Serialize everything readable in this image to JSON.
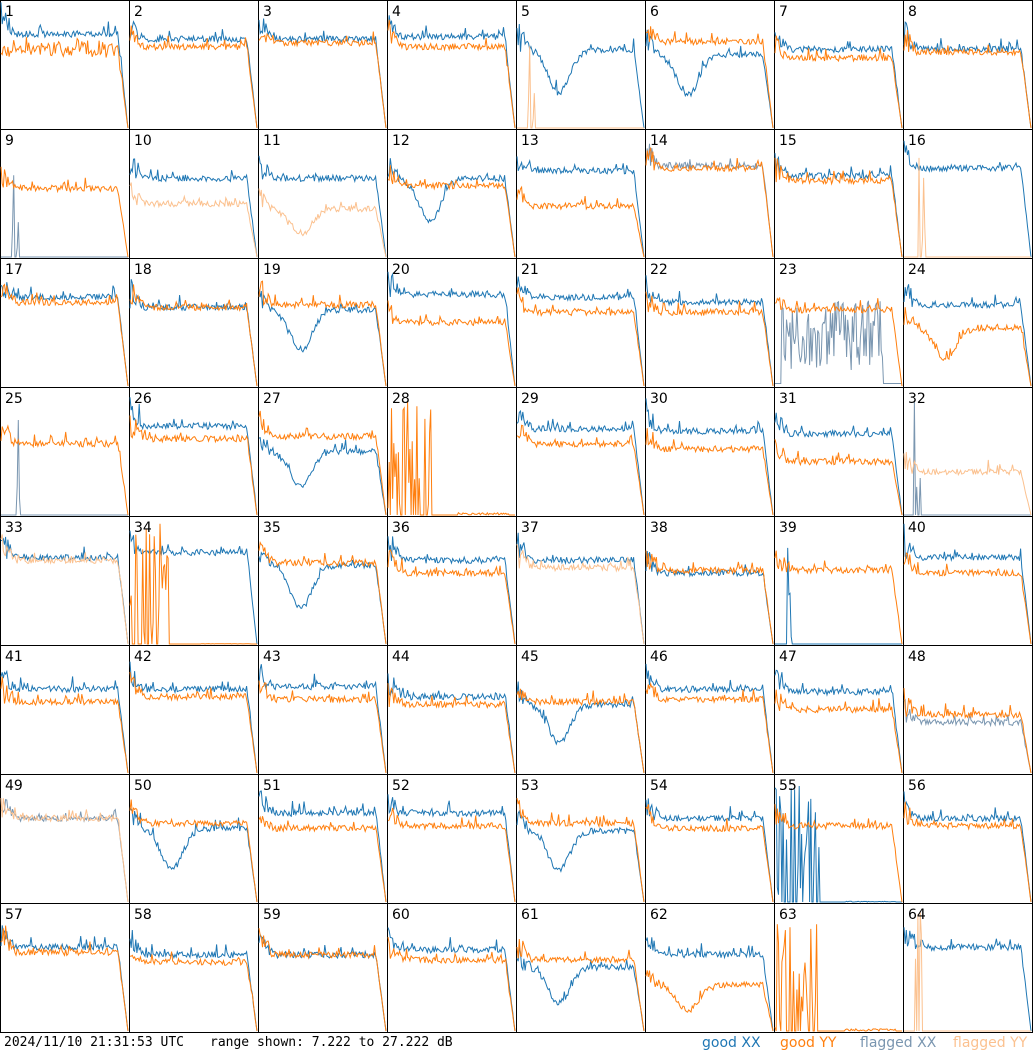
{
  "footer": {
    "timestamp": "2024/11/10 21:31:53 UTC",
    "range_text": "range shown: 7.222 to 27.222 dB",
    "legend": {
      "good_xx": "good XX",
      "good_yy": "good YY",
      "flagged_xx": "flagged XX",
      "flagged_yy": "flagged YY"
    }
  },
  "colors": {
    "good_xx": "#1f77b4",
    "good_yy": "#ff7f0e",
    "flagged_xx": "#7a96b0",
    "flagged_yy": "#fbc18f"
  },
  "chart_data": {
    "type": "line",
    "layout": "8x8 grid of small spectra, one per tile",
    "y_range_db": [
      7.222,
      27.222
    ],
    "series_kinds": [
      "good XX",
      "good YY",
      "flagged XX",
      "flagged YY"
    ],
    "tiles": [
      {
        "id": "1",
        "xx": "good",
        "yy": "good",
        "xx_level": 0.74,
        "yy_level": 0.62,
        "xx_shape": "normal",
        "yy_shape": "edge"
      },
      {
        "id": "2",
        "xx": "good",
        "yy": "good",
        "xx_level": 0.7,
        "yy_level": 0.64,
        "xx_shape": "normal",
        "yy_shape": "normal"
      },
      {
        "id": "3",
        "xx": "good",
        "yy": "good",
        "xx_level": 0.7,
        "yy_level": 0.67,
        "xx_shape": "normal",
        "yy_shape": "normal"
      },
      {
        "id": "4",
        "xx": "good",
        "yy": "good",
        "xx_level": 0.72,
        "yy_level": 0.64,
        "xx_shape": "normal",
        "yy_shape": "normal"
      },
      {
        "id": "5",
        "xx": "good",
        "yy": "flagged",
        "xx_level": 0.62,
        "yy_level": 0.0,
        "xx_shape": "dip",
        "yy_shape": "spike"
      },
      {
        "id": "6",
        "xx": "good",
        "yy": "good",
        "xx_level": 0.58,
        "yy_level": 0.68,
        "xx_shape": "dip",
        "yy_shape": "normal"
      },
      {
        "id": "7",
        "xx": "good",
        "yy": "good",
        "xx_level": 0.62,
        "yy_level": 0.55,
        "xx_shape": "normal",
        "yy_shape": "normal"
      },
      {
        "id": "8",
        "xx": "good",
        "yy": "good",
        "xx_level": 0.62,
        "yy_level": 0.6,
        "xx_shape": "normal",
        "yy_shape": "normal"
      },
      {
        "id": "9",
        "xx": "flagged",
        "yy": "good",
        "xx_level": 0.0,
        "yy_level": 0.54,
        "xx_shape": "spike",
        "yy_shape": "normal"
      },
      {
        "id": "10",
        "xx": "good",
        "yy": "flagged",
        "xx_level": 0.62,
        "yy_level": 0.42,
        "xx_shape": "normal",
        "yy_shape": "normal"
      },
      {
        "id": "11",
        "xx": "good",
        "yy": "flagged",
        "xx_level": 0.62,
        "yy_level": 0.38,
        "xx_shape": "normal",
        "yy_shape": "dip"
      },
      {
        "id": "12",
        "xx": "good",
        "yy": "good",
        "xx_level": 0.62,
        "yy_level": 0.56,
        "xx_shape": "dip",
        "yy_shape": "normal"
      },
      {
        "id": "13",
        "xx": "good",
        "yy": "good",
        "xx_level": 0.68,
        "yy_level": 0.4,
        "xx_shape": "normal",
        "yy_shape": "normal"
      },
      {
        "id": "14",
        "xx": "flagged",
        "yy": "good",
        "xx_level": 0.72,
        "yy_level": 0.7,
        "xx_shape": "normal",
        "yy_shape": "normal"
      },
      {
        "id": "15",
        "xx": "good",
        "yy": "good",
        "xx_level": 0.64,
        "yy_level": 0.6,
        "xx_shape": "normal",
        "yy_shape": "normal"
      },
      {
        "id": "16",
        "xx": "good",
        "yy": "flagged",
        "xx_level": 0.7,
        "yy_level": 0.0,
        "xx_shape": "normal",
        "yy_shape": "spike"
      },
      {
        "id": "17",
        "xx": "good",
        "yy": "good",
        "xx_level": 0.7,
        "yy_level": 0.66,
        "xx_shape": "normal",
        "yy_shape": "normal"
      },
      {
        "id": "18",
        "xx": "good",
        "yy": "good",
        "xx_level": 0.62,
        "yy_level": 0.62,
        "xx_shape": "normal",
        "yy_shape": "normal"
      },
      {
        "id": "19",
        "xx": "good",
        "yy": "good",
        "xx_level": 0.6,
        "yy_level": 0.64,
        "xx_shape": "dip",
        "yy_shape": "normal"
      },
      {
        "id": "20",
        "xx": "good",
        "yy": "good",
        "xx_level": 0.72,
        "yy_level": 0.5,
        "xx_shape": "normal",
        "yy_shape": "normal"
      },
      {
        "id": "21",
        "xx": "good",
        "yy": "good",
        "xx_level": 0.7,
        "yy_level": 0.58,
        "xx_shape": "normal",
        "yy_shape": "normal"
      },
      {
        "id": "22",
        "xx": "good",
        "yy": "good",
        "xx_level": 0.66,
        "yy_level": 0.58,
        "xx_shape": "normal",
        "yy_shape": "normal"
      },
      {
        "id": "23",
        "xx": "flagged",
        "yy": "good",
        "xx_level": 0.4,
        "yy_level": 0.6,
        "xx_shape": "noisy",
        "yy_shape": "normal"
      },
      {
        "id": "24",
        "xx": "good",
        "yy": "good",
        "xx_level": 0.64,
        "yy_level": 0.46,
        "xx_shape": "normal",
        "yy_shape": "dip"
      },
      {
        "id": "25",
        "xx": "flagged",
        "yy": "good",
        "xx_level": 0.0,
        "yy_level": 0.56,
        "xx_shape": "spike",
        "yy_shape": "normal"
      },
      {
        "id": "26",
        "xx": "good",
        "yy": "good",
        "xx_level": 0.7,
        "yy_level": 0.6,
        "xx_shape": "normal",
        "yy_shape": "normal"
      },
      {
        "id": "27",
        "xx": "good",
        "yy": "good",
        "xx_level": 0.5,
        "yy_level": 0.62,
        "xx_shape": "dip",
        "yy_shape": "normal"
      },
      {
        "id": "28",
        "xx": "none",
        "yy": "good",
        "xx_level": 0.0,
        "yy_level": 0.3,
        "xx_shape": "none",
        "yy_shape": "spiky"
      },
      {
        "id": "29",
        "xx": "good",
        "yy": "good",
        "xx_level": 0.68,
        "yy_level": 0.56,
        "xx_shape": "normal",
        "yy_shape": "normal"
      },
      {
        "id": "30",
        "xx": "good",
        "yy": "good",
        "xx_level": 0.66,
        "yy_level": 0.52,
        "xx_shape": "normal",
        "yy_shape": "normal"
      },
      {
        "id": "31",
        "xx": "good",
        "yy": "good",
        "xx_level": 0.64,
        "yy_level": 0.42,
        "xx_shape": "normal",
        "yy_shape": "normal"
      },
      {
        "id": "32",
        "xx": "flagged",
        "yy": "flagged",
        "xx_level": 0.0,
        "yy_level": 0.34,
        "xx_shape": "spike",
        "yy_shape": "normal"
      },
      {
        "id": "33",
        "xx": "good",
        "yy": "flagged",
        "xx_level": 0.68,
        "yy_level": 0.66,
        "xx_shape": "normal",
        "yy_shape": "normal"
      },
      {
        "id": "34",
        "xx": "good",
        "yy": "good",
        "xx_level": 0.72,
        "yy_level": 0.05,
        "xx_shape": "normal",
        "yy_shape": "spiky"
      },
      {
        "id": "35",
        "xx": "good",
        "yy": "good",
        "xx_level": 0.62,
        "yy_level": 0.64,
        "xx_shape": "dip",
        "yy_shape": "normal"
      },
      {
        "id": "36",
        "xx": "good",
        "yy": "good",
        "xx_level": 0.66,
        "yy_level": 0.56,
        "xx_shape": "normal",
        "yy_shape": "normal"
      },
      {
        "id": "37",
        "xx": "good",
        "yy": "flagged",
        "xx_level": 0.66,
        "yy_level": 0.6,
        "xx_shape": "normal",
        "yy_shape": "normal"
      },
      {
        "id": "38",
        "xx": "good",
        "yy": "good",
        "xx_level": 0.56,
        "yy_level": 0.58,
        "xx_shape": "normal",
        "yy_shape": "normal"
      },
      {
        "id": "39",
        "xx": "good",
        "yy": "good",
        "xx_level": 0.0,
        "yy_level": 0.58,
        "xx_shape": "spike",
        "yy_shape": "normal"
      },
      {
        "id": "40",
        "xx": "good",
        "yy": "good",
        "xx_level": 0.68,
        "yy_level": 0.56,
        "xx_shape": "normal",
        "yy_shape": "normal"
      },
      {
        "id": "41",
        "xx": "good",
        "yy": "good",
        "xx_level": 0.66,
        "yy_level": 0.56,
        "xx_shape": "normal",
        "yy_shape": "normal"
      },
      {
        "id": "42",
        "xx": "good",
        "yy": "good",
        "xx_level": 0.66,
        "yy_level": 0.6,
        "xx_shape": "normal",
        "yy_shape": "normal"
      },
      {
        "id": "43",
        "xx": "good",
        "yy": "good",
        "xx_level": 0.68,
        "yy_level": 0.58,
        "xx_shape": "normal",
        "yy_shape": "normal"
      },
      {
        "id": "44",
        "xx": "good",
        "yy": "good",
        "xx_level": 0.6,
        "yy_level": 0.54,
        "xx_shape": "normal",
        "yy_shape": "normal"
      },
      {
        "id": "45",
        "xx": "good",
        "yy": "good",
        "xx_level": 0.54,
        "yy_level": 0.56,
        "xx_shape": "dip",
        "yy_shape": "normal"
      },
      {
        "id": "46",
        "xx": "good",
        "yy": "good",
        "xx_level": 0.66,
        "yy_level": 0.58,
        "xx_shape": "normal",
        "yy_shape": "normal"
      },
      {
        "id": "47",
        "xx": "good",
        "yy": "good",
        "xx_level": 0.64,
        "yy_level": 0.5,
        "xx_shape": "normal",
        "yy_shape": "normal"
      },
      {
        "id": "48",
        "xx": "flagged",
        "yy": "good",
        "xx_level": 0.4,
        "yy_level": 0.46,
        "xx_shape": "normal",
        "yy_shape": "normal"
      },
      {
        "id": "49",
        "xx": "flagged",
        "yy": "flagged",
        "xx_level": 0.66,
        "yy_level": 0.66,
        "xx_shape": "normal",
        "yy_shape": "normal"
      },
      {
        "id": "50",
        "xx": "good",
        "yy": "good",
        "xx_level": 0.58,
        "yy_level": 0.62,
        "xx_shape": "dip",
        "yy_shape": "normal"
      },
      {
        "id": "51",
        "xx": "good",
        "yy": "good",
        "xx_level": 0.7,
        "yy_level": 0.58,
        "xx_shape": "normal",
        "yy_shape": "normal"
      },
      {
        "id": "52",
        "xx": "good",
        "yy": "good",
        "xx_level": 0.7,
        "yy_level": 0.6,
        "xx_shape": "normal",
        "yy_shape": "normal"
      },
      {
        "id": "53",
        "xx": "good",
        "yy": "good",
        "xx_level": 0.56,
        "yy_level": 0.62,
        "xx_shape": "dip",
        "yy_shape": "normal"
      },
      {
        "id": "54",
        "xx": "good",
        "yy": "good",
        "xx_level": 0.66,
        "yy_level": 0.58,
        "xx_shape": "normal",
        "yy_shape": "normal"
      },
      {
        "id": "55",
        "xx": "good",
        "yy": "good",
        "xx_level": 0.1,
        "yy_level": 0.6,
        "xx_shape": "spiky",
        "yy_shape": "normal"
      },
      {
        "id": "56",
        "xx": "good",
        "yy": "good",
        "xx_level": 0.66,
        "yy_level": 0.6,
        "xx_shape": "normal",
        "yy_shape": "normal"
      },
      {
        "id": "57",
        "xx": "good",
        "yy": "good",
        "xx_level": 0.66,
        "yy_level": 0.62,
        "xx_shape": "normal",
        "yy_shape": "normal"
      },
      {
        "id": "58",
        "xx": "good",
        "yy": "good",
        "xx_level": 0.6,
        "yy_level": 0.54,
        "xx_shape": "normal",
        "yy_shape": "normal"
      },
      {
        "id": "59",
        "xx": "good",
        "yy": "good",
        "xx_level": 0.6,
        "yy_level": 0.6,
        "xx_shape": "normal",
        "yy_shape": "normal"
      },
      {
        "id": "60",
        "xx": "good",
        "yy": "good",
        "xx_level": 0.64,
        "yy_level": 0.56,
        "xx_shape": "normal",
        "yy_shape": "normal"
      },
      {
        "id": "61",
        "xx": "good",
        "yy": "good",
        "xx_level": 0.5,
        "yy_level": 0.56,
        "xx_shape": "dip",
        "yy_shape": "normal"
      },
      {
        "id": "62",
        "xx": "good",
        "yy": "good",
        "xx_level": 0.6,
        "yy_level": 0.36,
        "xx_shape": "normal",
        "yy_shape": "dip"
      },
      {
        "id": "63",
        "xx": "none",
        "yy": "good",
        "xx_level": 0.0,
        "yy_level": 0.3,
        "xx_shape": "none",
        "yy_shape": "spiky"
      },
      {
        "id": "64",
        "xx": "good",
        "yy": "flagged",
        "xx_level": 0.66,
        "yy_level": 0.0,
        "xx_shape": "normal",
        "yy_shape": "spike"
      }
    ]
  }
}
